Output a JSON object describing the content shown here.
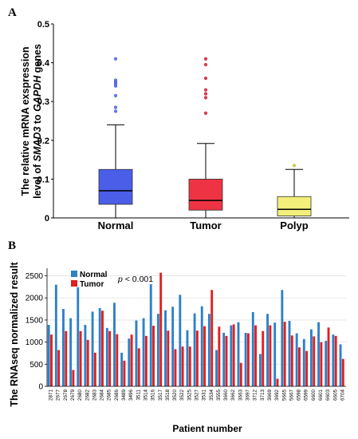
{
  "chart_data": [
    {
      "panel": "A",
      "type": "box",
      "ylabel_line1": "The relative mRNA exspression",
      "ylabel_line2_pre": "level of ",
      "ylabel_line2_gene1": "SMAD3",
      "ylabel_line2_mid": " to ",
      "ylabel_line2_gene2": "GAPDH",
      "ylabel_line2_post": " genes",
      "ylim": [
        0,
        0.5
      ],
      "yticks": [
        0,
        0.1,
        0.2,
        0.3,
        0.4,
        0.5
      ],
      "ytick_labels": [
        "0",
        "0.1",
        "0.2",
        "0.3",
        "0.4",
        "0.5"
      ],
      "categories": [
        "Normal",
        "Tumor",
        "Polyp"
      ],
      "colors": [
        "#4a5ee8",
        "#ee3344",
        "#f2f07a"
      ],
      "outlier_colors": [
        "#4a5ee8",
        "#d01c30",
        "#c8c040"
      ],
      "boxes": [
        {
          "name": "Normal",
          "whisker_low": 0.0,
          "q1": 0.035,
          "median": 0.07,
          "q3": 0.125,
          "whisker_high": 0.24,
          "outliers": [
            0.41,
            0.355,
            0.35,
            0.345,
            0.34,
            0.315,
            0.285,
            0.275
          ]
        },
        {
          "name": "Tumor",
          "whisker_low": 0.0,
          "q1": 0.02,
          "median": 0.045,
          "q3": 0.1,
          "whisker_high": 0.192,
          "outliers": [
            0.41,
            0.395,
            0.36,
            0.33,
            0.32,
            0.31,
            0.27
          ]
        },
        {
          "name": "Polyp",
          "whisker_low": 0.0,
          "q1": 0.005,
          "median": 0.022,
          "q3": 0.055,
          "whisker_high": 0.125,
          "outliers": [
            0.135
          ]
        }
      ]
    },
    {
      "panel": "B",
      "type": "bar",
      "ylabel": "The RNAseq normalized result",
      "xlabel": "Patient number",
      "ylim": [
        0,
        2600
      ],
      "yticks": [
        0,
        500,
        1000,
        1500,
        2000,
        2500
      ],
      "annotation_p": "p",
      "annotation_rest": " < 0.001",
      "legend_position": "top-left",
      "categories": [
        "2871",
        "2677",
        "2678",
        "2679",
        "2680",
        "2682",
        "2683",
        "2684",
        "2685",
        "2686",
        "3489",
        "3496",
        "3511",
        "3514",
        "3516",
        "3517",
        "3518",
        "3520",
        "3522",
        "3525",
        "3527",
        "3531",
        "3534",
        "3555",
        "3660",
        "3662",
        "3663",
        "3697",
        "3712",
        "3713",
        "3669",
        "3692",
        "5665",
        "5667",
        "6598",
        "6599",
        "6600",
        "6601",
        "6603",
        "6605",
        "6704"
      ],
      "series": [
        {
          "name": "Normal",
          "color": "#2f80c8",
          "values": [
            1390,
            2300,
            1750,
            1540,
            2240,
            1390,
            1690,
            1770,
            1320,
            1890,
            760,
            1080,
            1490,
            1540,
            2310,
            1640,
            1720,
            1800,
            2070,
            1270,
            1650,
            1810,
            1640,
            820,
            1210,
            1380,
            1450,
            1210,
            1680,
            730,
            1640,
            1440,
            2180,
            1480,
            1200,
            1070,
            1290,
            1450,
            1030,
            1170,
            950
          ]
        },
        {
          "name": "Tumor",
          "color": "#e02020",
          "values": [
            1170,
            820,
            1250,
            370,
            1250,
            1050,
            760,
            1710,
            1250,
            1180,
            580,
            1170,
            860,
            1140,
            1370,
            2570,
            1260,
            840,
            900,
            900,
            1260,
            1360,
            2180,
            1350,
            1140,
            1400,
            530,
            1200,
            1380,
            1250,
            1380,
            170,
            1460,
            1150,
            880,
            800,
            1130,
            1000,
            1330,
            1140,
            620
          ]
        }
      ]
    }
  ]
}
